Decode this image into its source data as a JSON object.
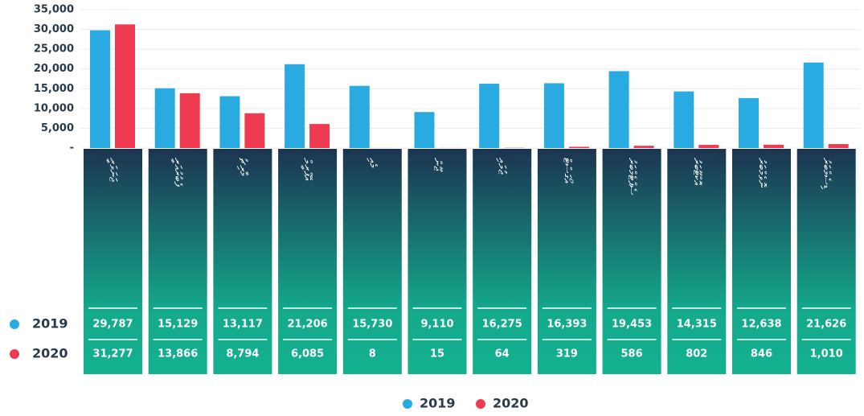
{
  "chart_data": {
    "type": "bar",
    "categories": [
      "ޖަނަވަރީ",
      "ފެބުރުއަރީ",
      "މާރިޗު",
      "އޭޕްރީލް",
      "މެއި",
      "ޖޫން",
      "ޖުލައި",
      "އޯގަސްޓް",
      "ސެޕްޓެމްބަރު",
      "އޮކްޓޫބަރު",
      "ނޮވެމްބަރު",
      "ޑިސެމްބަރު"
    ],
    "series": [
      {
        "name": "2019",
        "color": "#29abe2",
        "values": [
          29787,
          15129,
          13117,
          21206,
          15730,
          9110,
          16275,
          16393,
          19453,
          14315,
          12638,
          21626
        ],
        "value_labels": [
          "29,787",
          "15,129",
          "13,117",
          "21,206",
          "15,730",
          "9,110",
          "16,275",
          "16,393",
          "19,453",
          "14,315",
          "12,638",
          "21,626"
        ]
      },
      {
        "name": "2020",
        "color": "#ef3b52",
        "values": [
          31277,
          13866,
          8794,
          6085,
          8,
          15,
          64,
          319,
          586,
          802,
          846,
          1010
        ],
        "value_labels": [
          "31,277",
          "13,866",
          "8,794",
          "6,085",
          "8",
          "15",
          "64",
          "319",
          "586",
          "802",
          "846",
          "1,010"
        ]
      }
    ],
    "ylim": [
      0,
      35000
    ],
    "yticks": [
      {
        "value": 0,
        "label": "-"
      },
      {
        "value": 5000,
        "label": "5,000"
      },
      {
        "value": 10000,
        "label": "10,000"
      },
      {
        "value": 15000,
        "label": "15,000"
      },
      {
        "value": 20000,
        "label": "20,000"
      },
      {
        "value": 25000,
        "label": "25,000"
      },
      {
        "value": 30000,
        "label": "30,000"
      },
      {
        "value": 35000,
        "label": "35,000"
      }
    ],
    "grid": true,
    "legend": "bottom"
  }
}
